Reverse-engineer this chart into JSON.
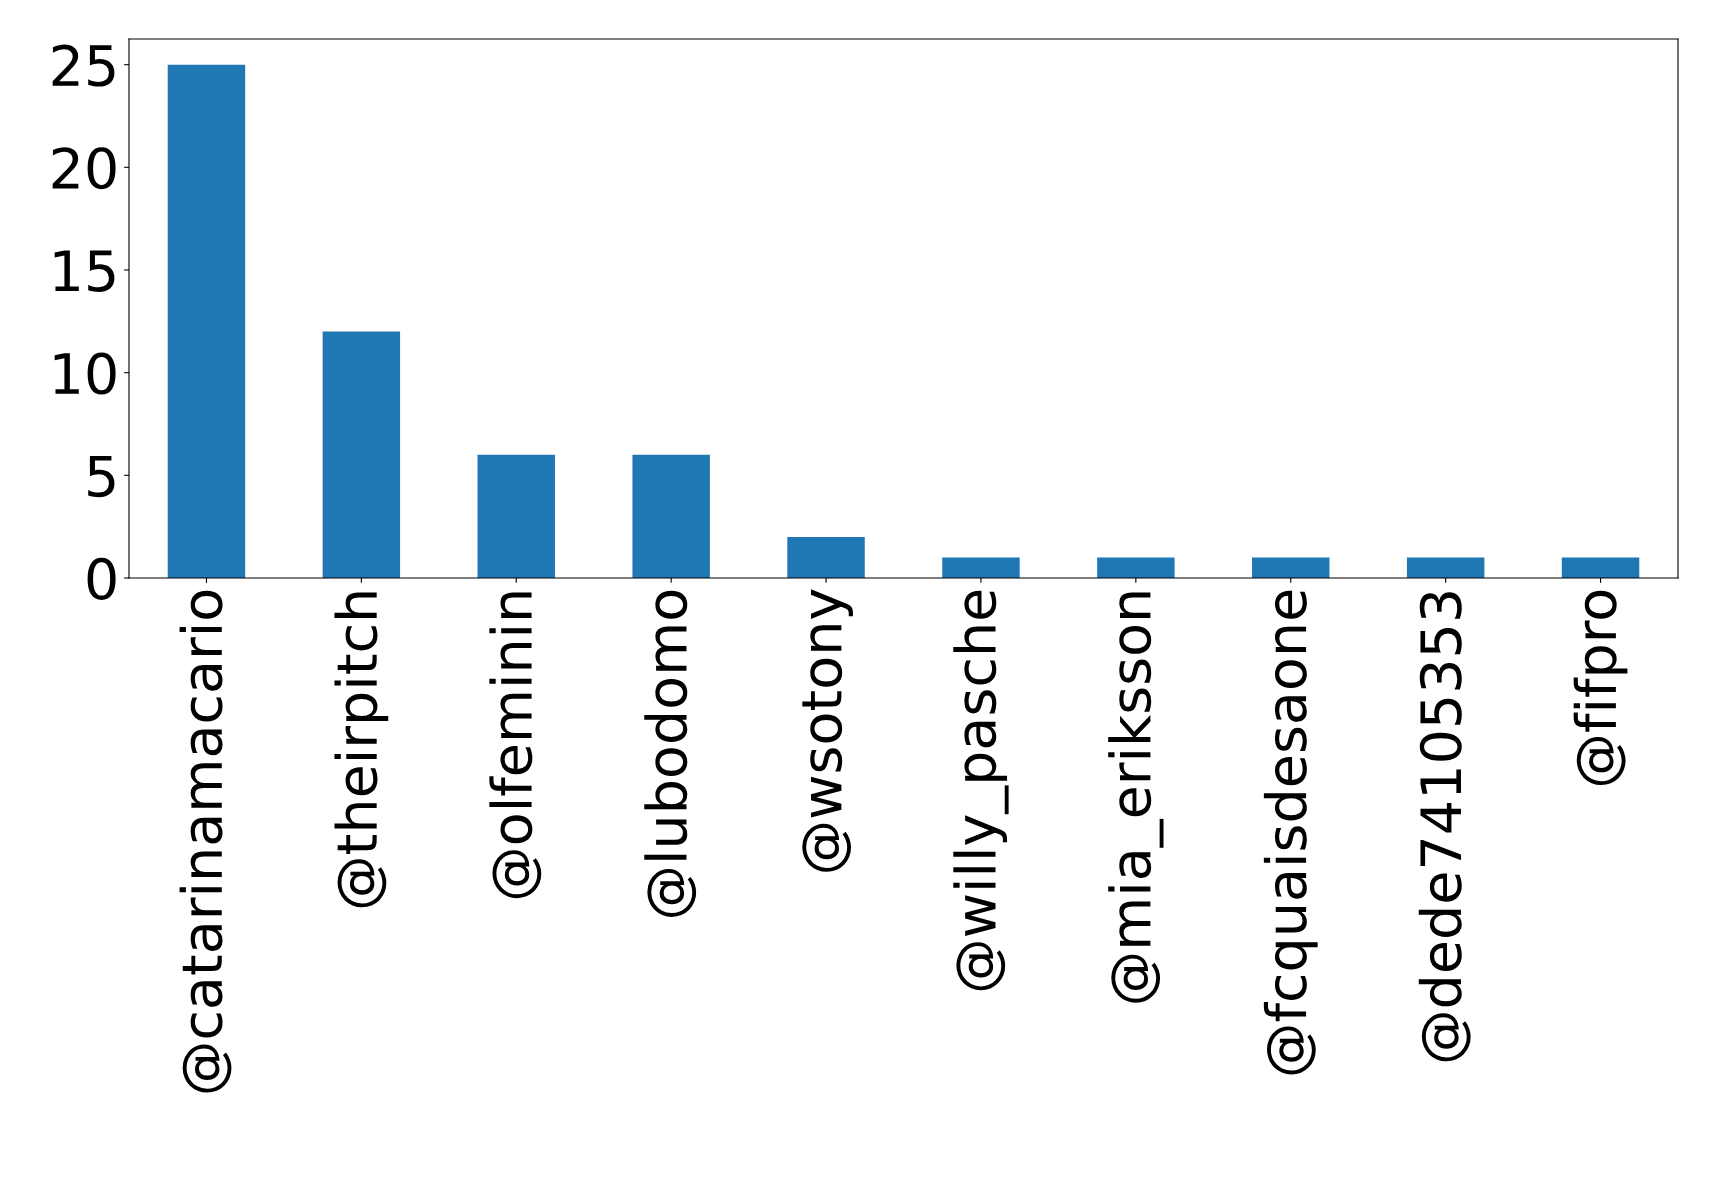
{
  "chart_data": {
    "type": "bar",
    "categories": [
      "@catarinamacario",
      "@theirpitch",
      "@olfeminin",
      "@lubodomo",
      "@wsotony",
      "@willy_pasche",
      "@mia_eriksson",
      "@fcquaisdesaone",
      "@dede74105353",
      "@fifpro"
    ],
    "values": [
      25,
      12,
      6,
      6,
      2,
      1,
      1,
      1,
      1,
      1
    ],
    "color": "#1f77b4",
    "ylim": [
      0,
      26.25
    ],
    "yticks": [
      0,
      5,
      10,
      15,
      20,
      25
    ],
    "grid": false,
    "legend": false
  }
}
